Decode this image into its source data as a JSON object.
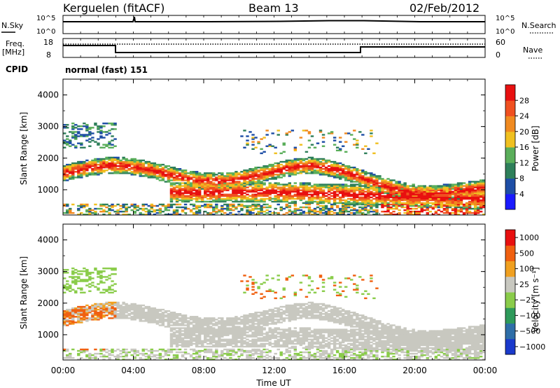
{
  "header": {
    "station": "Kerguelen (fitACF)",
    "beam": "Beam 13",
    "date": "02/Feb/2012"
  },
  "noise_panel": {
    "left_label": "N.Sky",
    "left_ticks": [
      "10^5",
      "10^0"
    ],
    "right_label": "N.Search",
    "right_ticks": [
      "10^5",
      "10^0"
    ]
  },
  "freq_panel": {
    "left_label_line1": "Freq.",
    "left_label_line2": "[MHz]",
    "left_ticks": [
      "18",
      "8"
    ],
    "right_label": "Nave",
    "right_ticks": [
      "60",
      "0"
    ]
  },
  "cpid": {
    "label": "CPID",
    "value": "normal (fast) 151"
  },
  "x_axis": {
    "label": "Time UT",
    "ticks": [
      "00:00",
      "04:00",
      "08:00",
      "12:00",
      "16:00",
      "20:00",
      "00:00"
    ]
  },
  "chart_data": [
    {
      "type": "heatmap",
      "panel": "power",
      "ylabel": "Slant Range [km]",
      "y_ticks": [
        "1000",
        "2000",
        "3000",
        "4000"
      ],
      "ylim": [
        200,
        4500
      ],
      "xlim_hours": [
        0,
        24
      ],
      "colorbar": {
        "label": "Power [dB]",
        "ticks": [
          "4",
          "8",
          "12",
          "16",
          "20",
          "24",
          "28"
        ],
        "colors": [
          "#1a1aff",
          "#1e4ea6",
          "#2e7f5a",
          "#5aae5a",
          "#f0c020",
          "#f08a20",
          "#f05020",
          "#e81010"
        ]
      },
      "features": [
        {
          "name": "main echo band",
          "x_hours": [
            0,
            24
          ],
          "y_km": [
            700,
            2200
          ],
          "peak_db": 28
        },
        {
          "name": "near range echoes",
          "x_hours": [
            0,
            24
          ],
          "y_km": [
            300,
            700
          ],
          "peak_db": 28
        }
      ]
    },
    {
      "type": "heatmap",
      "panel": "velocity",
      "ylabel": "Slant Range [km]",
      "y_ticks": [
        "1000",
        "2000",
        "3000",
        "4000"
      ],
      "ylim": [
        200,
        4500
      ],
      "xlim_hours": [
        0,
        24
      ],
      "colorbar": {
        "label": "Velocity  [m s⁻¹]",
        "ticks": [
          "1000",
          "500",
          "100",
          "25",
          "−25",
          "−100",
          "−500",
          "−1000"
        ],
        "colors": [
          "#1a3acc",
          "#2e6ea8",
          "#2e9a5a",
          "#8acc4a",
          "#c8c8c0",
          "#f0a020",
          "#f06010",
          "#e81010"
        ]
      },
      "features": [
        {
          "name": "ground scatter band",
          "x_hours": [
            3,
            24
          ],
          "y_km": [
            400,
            2100
          ],
          "velocity_ms": 0
        }
      ]
    }
  ]
}
